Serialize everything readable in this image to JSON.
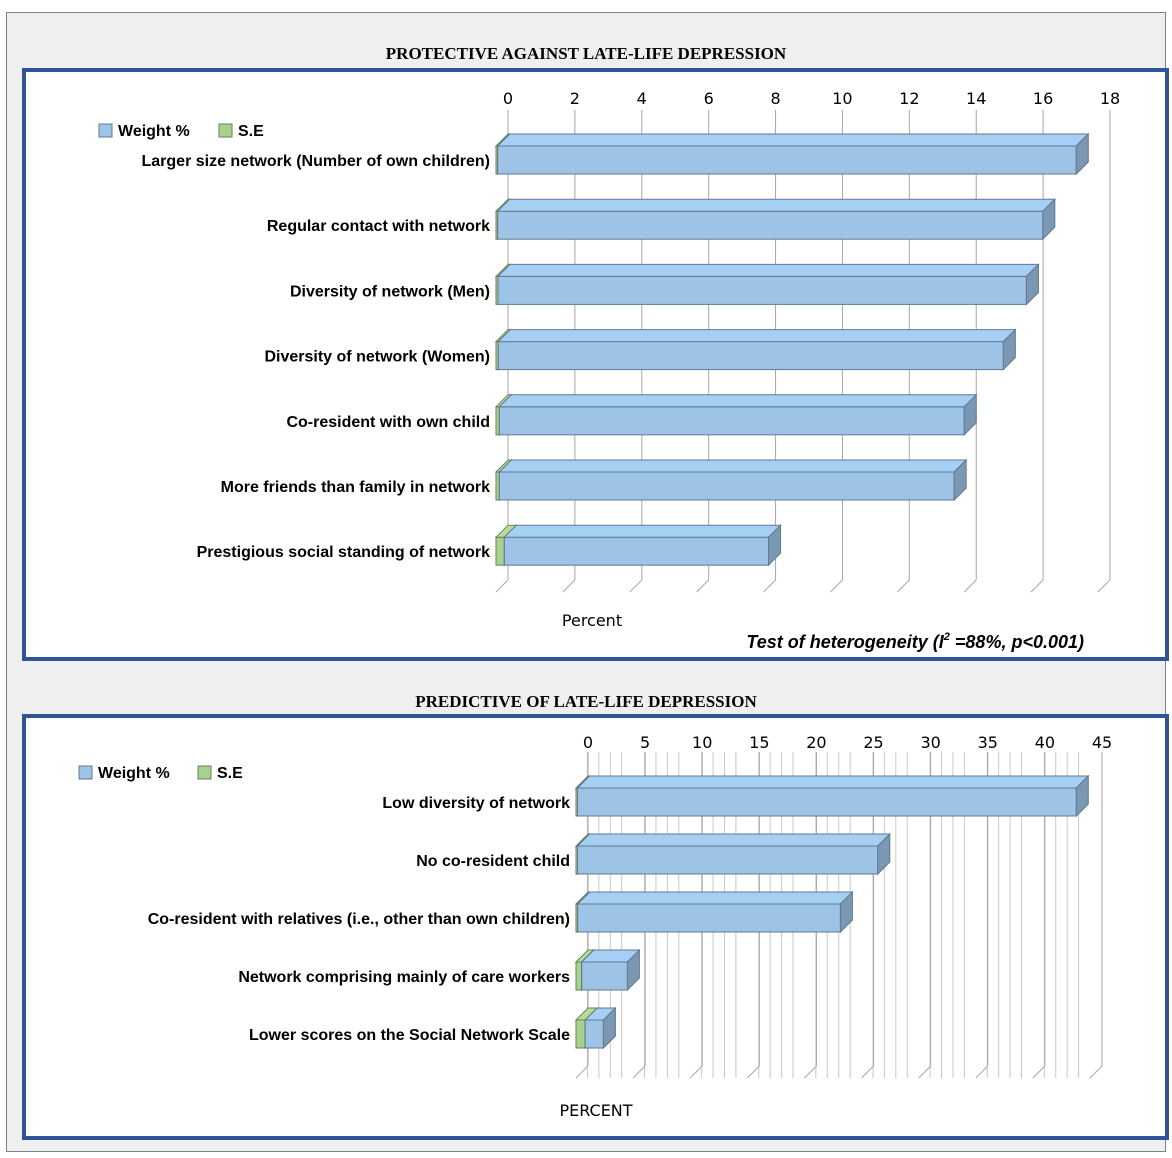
{
  "chart_data": [
    {
      "type": "bar",
      "orientation": "horizontal",
      "title": "PROTECTIVE AGAINST LATE-LIFE DEPRESSION",
      "xlabel": "Percent",
      "xlim": [
        0,
        18
      ],
      "ticks": [
        0,
        2,
        4,
        6,
        8,
        10,
        12,
        14,
        16,
        18
      ],
      "legend": {
        "placement": "top-left",
        "entries": [
          "Weight %",
          "S.E"
        ]
      },
      "categories": [
        "Larger size network (Number of own children)",
        "Regular contact with network",
        "Diversity of network (Men)",
        "Diversity of network (Women)",
        "Co-resident with own child",
        "More friends than family in network",
        "Prestigious social standing of network"
      ],
      "series": [
        {
          "name": "S.E",
          "color": "#a9d18e",
          "values": [
            0.05,
            0.05,
            0.06,
            0.07,
            0.1,
            0.1,
            0.25
          ]
        },
        {
          "name": "Weight %",
          "color": "#9dc3e6",
          "values": [
            17.3,
            16.3,
            15.8,
            15.1,
            13.9,
            13.6,
            7.9
          ]
        }
      ],
      "note": {
        "prefix": "Test of heterogeneity (I",
        "sup": "2",
        "suffix": " =88%, p<0.001)"
      }
    },
    {
      "type": "bar",
      "orientation": "horizontal",
      "title": "PREDICTIVE OF LATE-LIFE DEPRESSION",
      "xlabel": "PERCENT",
      "xlim": [
        0,
        45
      ],
      "ticks": [
        0,
        5,
        10,
        15,
        20,
        25,
        30,
        35,
        40,
        45
      ],
      "legend": {
        "placement": "top-left",
        "entries": [
          "Weight %",
          "S.E"
        ]
      },
      "categories": [
        "Low diversity of network",
        "No co-resident child",
        "Co-resident with relatives (i.e., other than own children)",
        "Network comprising mainly of care workers",
        "Lower scores on the Social Network Scale"
      ],
      "series": [
        {
          "name": "S.E",
          "color": "#a9d18e",
          "values": [
            0.1,
            0.12,
            0.15,
            0.5,
            0.8
          ]
        },
        {
          "name": "Weight %",
          "color": "#9dc3e6",
          "values": [
            43.7,
            26.3,
            23.0,
            4.0,
            1.6
          ]
        }
      ]
    }
  ]
}
